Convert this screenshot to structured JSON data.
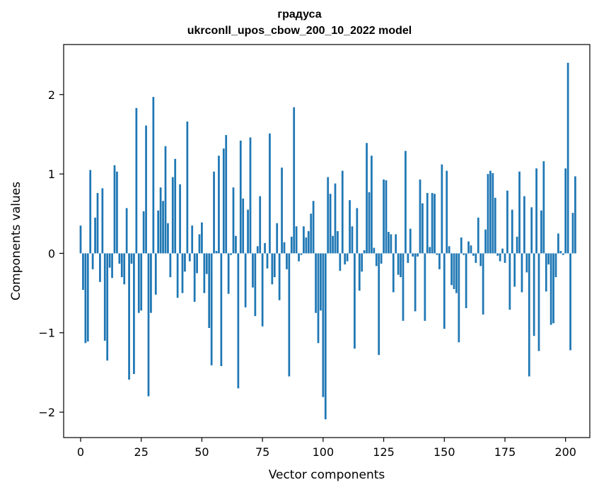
{
  "chart_data": {
    "type": "bar",
    "title": [
      "градуса",
      "ukrconll_upos_cbow_200_10_2022 model"
    ],
    "xlabel": "Vector components",
    "ylabel": "Components values",
    "xlim": [
      -7,
      210
    ],
    "ylim": [
      -2.32,
      2.63
    ],
    "xticks": [
      0,
      25,
      50,
      75,
      100,
      125,
      150,
      175,
      200
    ],
    "yticks": [
      -2,
      -1,
      0,
      1,
      2
    ],
    "ytick_labels": [
      "−2",
      "−1",
      "0",
      "1",
      "2"
    ],
    "grid": false,
    "legend": "none",
    "bar_color": "#1f77b4",
    "values": [
      0.35,
      -0.46,
      -1.13,
      -1.11,
      1.05,
      -0.2,
      0.45,
      0.76,
      -0.36,
      0.82,
      -1.1,
      -1.35,
      -0.18,
      -0.31,
      1.11,
      1.03,
      -0.13,
      -0.3,
      -0.39,
      0.57,
      -1.59,
      -0.13,
      -1.52,
      1.83,
      -0.75,
      -0.72,
      0.53,
      1.61,
      -1.8,
      -0.75,
      1.97,
      -0.52,
      0.54,
      0.83,
      0.66,
      1.35,
      0.38,
      -0.3,
      0.96,
      1.19,
      -0.56,
      0.87,
      -0.5,
      -0.23,
      1.66,
      -0.1,
      0.35,
      -0.61,
      -0.25,
      0.24,
      0.39,
      -0.5,
      -0.26,
      -0.94,
      -1.41,
      1.03,
      0.03,
      1.23,
      -1.42,
      1.32,
      1.49,
      -0.51,
      -0.02,
      0.83,
      0.22,
      -1.7,
      1.42,
      0.69,
      -0.68,
      0.55,
      1.46,
      -0.43,
      -0.79,
      0.09,
      0.72,
      -0.92,
      0.13,
      -0.19,
      1.51,
      -0.39,
      -0.3,
      0.38,
      -0.59,
      1.08,
      0.14,
      -0.2,
      -1.55,
      0.21,
      1.84,
      0.34,
      -0.1,
      -0.02,
      0.34,
      0.2,
      0.28,
      0.5,
      0.66,
      -0.75,
      -1.13,
      -0.72,
      -1.81,
      -2.09,
      0.96,
      0.75,
      0.22,
      0.88,
      0.28,
      -0.22,
      1.04,
      -0.14,
      -0.1,
      0.67,
      0.34,
      -1.2,
      0.57,
      -0.47,
      -0.23,
      0.04,
      1.39,
      0.77,
      1.23,
      0.07,
      -0.16,
      -1.28,
      -0.13,
      0.93,
      0.92,
      0.27,
      0.24,
      -0.49,
      0.24,
      -0.27,
      -0.3,
      -0.85,
      1.29,
      -0.12,
      0.31,
      -0.04,
      -0.73,
      -0.04,
      0.93,
      0.63,
      -0.85,
      0.76,
      0.08,
      0.76,
      0.75,
      -0.02,
      -0.2,
      1.12,
      -0.95,
      1.04,
      0.09,
      -0.4,
      -0.45,
      -0.5,
      -1.12,
      0.2,
      -0.02,
      -0.69,
      0.15,
      0.1,
      -0.03,
      -0.12,
      0.45,
      -0.16,
      -0.77,
      0.3,
      1.0,
      1.04,
      1.01,
      0.7,
      -0.03,
      -0.1,
      0.06,
      -0.12,
      0.79,
      -0.71,
      0.55,
      -0.42,
      0.21,
      1.03,
      -0.49,
      0.72,
      -0.24,
      -1.55,
      0.58,
      -1.04,
      1.07,
      -1.23,
      0.54,
      1.16,
      -0.48,
      -0.14,
      -0.9,
      -0.88,
      -0.3,
      0.25,
      0.03,
      -0.02,
      1.07,
      2.4,
      -1.22,
      0.51,
      0.97
    ]
  }
}
